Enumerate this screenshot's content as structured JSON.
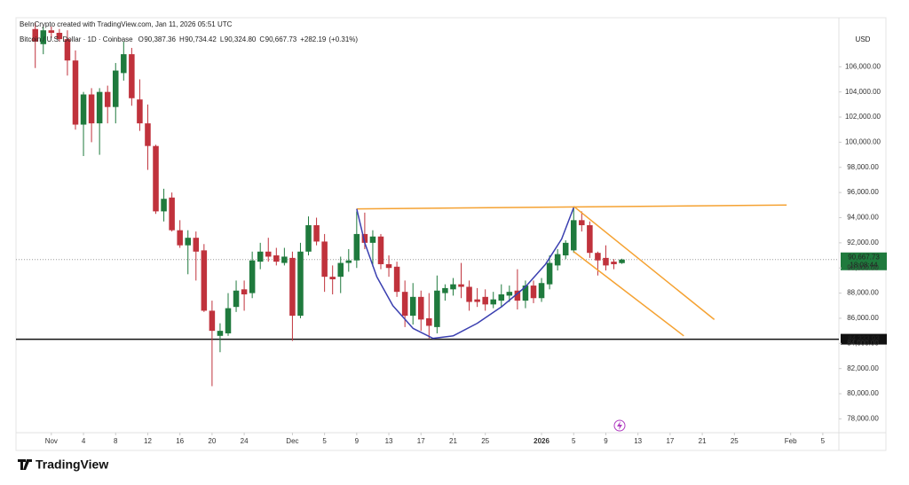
{
  "chart_data": {
    "type": "candlestick",
    "title": "BeInCrypto created with TradingView.com, Jan 11, 2026 05:51 UTC",
    "symbol": "Bitcoin / U.S. Dollar · 1D · Coinbase",
    "ohlc_legend": [
      {
        "key": "O",
        "value": "90,387.36"
      },
      {
        "key": "H",
        "value": "90,734.42"
      },
      {
        "key": "L",
        "value": "90,324.80"
      },
      {
        "key": "C",
        "value": "90,667.73"
      },
      {
        "key": "+282.19",
        "value": "(+0.31%)"
      }
    ],
    "currency": "USD",
    "up_color": "#1f7a3d",
    "down_color": "#c0323c",
    "grid": false,
    "x": [
      -2,
      -1,
      0,
      1,
      2,
      3,
      4,
      5,
      6,
      7,
      8,
      9,
      10,
      11,
      12,
      13,
      14,
      15,
      16,
      17,
      18,
      19,
      20,
      21,
      22,
      23,
      24,
      25,
      26,
      27,
      28,
      29,
      30,
      31,
      32,
      33,
      34,
      35,
      36,
      37,
      38,
      39,
      40,
      41,
      42,
      43,
      44,
      45,
      46,
      47,
      48,
      49,
      50,
      51,
      52,
      53,
      54,
      55,
      56,
      57,
      58,
      59,
      60,
      61,
      62,
      63,
      64,
      65,
      66,
      67,
      68,
      69,
      70,
      71
    ],
    "open": [
      109000,
      107800,
      108900,
      108700,
      108200,
      106500,
      101400,
      103800,
      101500,
      104000,
      102800,
      105500,
      107000,
      103400,
      101500,
      99700,
      94500,
      95600,
      93000,
      91800,
      92400,
      91400,
      86600,
      84600,
      84800,
      86900,
      88300,
      88000,
      90500,
      91300,
      91000,
      90400,
      90800,
      86200,
      91300,
      93400,
      92100,
      89300,
      89300,
      90400,
      90600,
      92700,
      92000,
      92500,
      90300,
      90100,
      88100,
      86200,
      87700,
      86000,
      85300,
      88000,
      88300,
      88700,
      88500,
      87500,
      87700,
      87100,
      87400,
      87800,
      88200,
      87400,
      88600,
      87600,
      88700,
      90200,
      91000,
      91400,
      93800,
      93400,
      91200,
      90800,
      90500,
      90387.36
    ],
    "high": [
      109500,
      109200,
      109200,
      109000,
      108900,
      107300,
      104000,
      104300,
      104300,
      104500,
      106300,
      108000,
      107500,
      105000,
      103000,
      99800,
      96300,
      96000,
      93800,
      93000,
      92900,
      91900,
      87400,
      85600,
      88000,
      89000,
      89000,
      91300,
      92000,
      92400,
      91600,
      91600,
      91300,
      92000,
      94100,
      94000,
      92700,
      90200,
      90900,
      91500,
      94500,
      94400,
      93000,
      92700,
      91000,
      90500,
      89000,
      88800,
      88200,
      88000,
      89400,
      88700,
      89200,
      90400,
      89000,
      88400,
      88300,
      88100,
      88700,
      88600,
      89900,
      89000,
      89000,
      89200,
      91000,
      91500,
      92200,
      94800,
      94500,
      93700,
      91300,
      91800,
      90700,
      90734.42
    ],
    "low": [
      105900,
      107000,
      108300,
      108000,
      105300,
      101000,
      98900,
      100000,
      99000,
      101500,
      101500,
      104900,
      102900,
      100900,
      97800,
      94300,
      93700,
      92900,
      91600,
      89500,
      89000,
      86500,
      80600,
      83300,
      84600,
      86500,
      86600,
      87600,
      89900,
      90500,
      90200,
      90200,
      84200,
      86000,
      91000,
      91800,
      88100,
      87900,
      88000,
      89700,
      90000,
      91500,
      90100,
      89900,
      89300,
      87700,
      85300,
      85500,
      85000,
      84400,
      84800,
      87400,
      87800,
      87600,
      86600,
      86900,
      86600,
      86800,
      86900,
      87300,
      86700,
      86800,
      87200,
      87300,
      88300,
      89800,
      90700,
      91200,
      92900,
      90800,
      89400,
      89800,
      89900,
      90324.8
    ],
    "close": [
      108000,
      108900,
      108700,
      108200,
      106500,
      101400,
      103800,
      101500,
      104000,
      102800,
      105700,
      107000,
      103500,
      101500,
      99700,
      94500,
      95500,
      93000,
      91800,
      92400,
      91300,
      86600,
      85000,
      85000,
      86800,
      88200,
      87900,
      90600,
      91300,
      90900,
      90500,
      90900,
      86200,
      91300,
      93400,
      92100,
      89300,
      89100,
      90400,
      90600,
      92700,
      92000,
      92500,
      90300,
      90000,
      88100,
      86200,
      87700,
      85900,
      85400,
      88200,
      88400,
      88700,
      88500,
      87300,
      87300,
      87100,
      87500,
      87900,
      88100,
      87400,
      88600,
      87600,
      88800,
      90400,
      91100,
      92000,
      93800,
      93400,
      91200,
      90600,
      90200,
      90300,
      90667.73
    ],
    "xlim": [
      -4.4,
      98
    ],
    "ylim": [
      76900,
      109900
    ],
    "xticks": [
      {
        "value": 0,
        "label": "Nov"
      },
      4,
      8,
      12,
      16,
      20,
      24,
      {
        "value": 30,
        "label": "Dec"
      },
      {
        "value": 34,
        "label": "5"
      },
      {
        "value": 38,
        "label": "9"
      },
      {
        "value": 42,
        "label": "13"
      },
      {
        "value": 46,
        "label": "17"
      },
      {
        "value": 50,
        "label": "21"
      },
      {
        "value": 54,
        "label": "25"
      },
      {
        "value": 61,
        "label": "2026"
      },
      {
        "value": 65,
        "label": "5"
      },
      {
        "value": 69,
        "label": "9"
      },
      {
        "value": 73,
        "label": "13"
      },
      {
        "value": 77,
        "label": "17"
      },
      {
        "value": 81,
        "label": "21"
      },
      {
        "value": 85,
        "label": "25"
      },
      {
        "value": 92,
        "label": "Feb"
      },
      {
        "value": 96,
        "label": "5"
      }
    ],
    "yticks": [
      {
        "value": 78000,
        "label": "78,000.00"
      },
      {
        "value": 80000,
        "label": "80,000.00"
      },
      {
        "value": 82000,
        "label": "82,000.00"
      },
      {
        "value": 84000,
        "label": "84,000.00"
      },
      {
        "value": 86000,
        "label": "86,000.00"
      },
      {
        "value": 88000,
        "label": "88,000.00"
      },
      {
        "value": 90000,
        "label": "90,000.00"
      },
      {
        "value": 92000,
        "label": "92,000.00"
      },
      {
        "value": 94000,
        "label": "94,000.00"
      },
      {
        "value": 96000,
        "label": "96,000.00"
      },
      {
        "value": 98000,
        "label": "98,000.00"
      },
      {
        "value": 100000,
        "label": "100,000.00"
      },
      {
        "value": 102000,
        "label": "102,000.00"
      },
      {
        "value": 104000,
        "label": "104,000.00"
      },
      {
        "value": 106000,
        "label": "106,000.00"
      }
    ],
    "hline": {
      "value": 84333.93,
      "label": "84,333.93",
      "color": "#111111"
    },
    "last_price": {
      "value": 90667.73,
      "label": "90,667.73",
      "countdown": "18:08:44",
      "color": "#1f7a3d"
    },
    "drawings": [
      {
        "color": "#f5a232",
        "points": [
          {
            "x": 38,
            "y": 94700
          },
          {
            "x": 91.5,
            "y": 95000
          }
        ]
      },
      {
        "color": "#f5a232",
        "points": [
          {
            "x": 65,
            "y": 94900
          },
          {
            "x": 82.5,
            "y": 85900
          }
        ]
      },
      {
        "color": "#f5a232",
        "points": [
          {
            "x": 65,
            "y": 91300
          },
          {
            "x": 78.7,
            "y": 84600
          }
        ]
      },
      {
        "color": "#3a3fb0",
        "points": [
          {
            "x": 38,
            "y": 94700
          },
          {
            "x": 39,
            "y": 92000
          },
          {
            "x": 40.5,
            "y": 89300
          },
          {
            "x": 42.5,
            "y": 87000
          },
          {
            "x": 45,
            "y": 85200
          },
          {
            "x": 47.5,
            "y": 84400
          },
          {
            "x": 50,
            "y": 84600
          },
          {
            "x": 53,
            "y": 85600
          },
          {
            "x": 56,
            "y": 86900
          },
          {
            "x": 59,
            "y": 88500
          },
          {
            "x": 61.5,
            "y": 90300
          },
          {
            "x": 63.5,
            "y": 92300
          },
          {
            "x": 65,
            "y": 94800
          }
        ]
      }
    ]
  },
  "footer": {
    "brand": "TradingView"
  }
}
